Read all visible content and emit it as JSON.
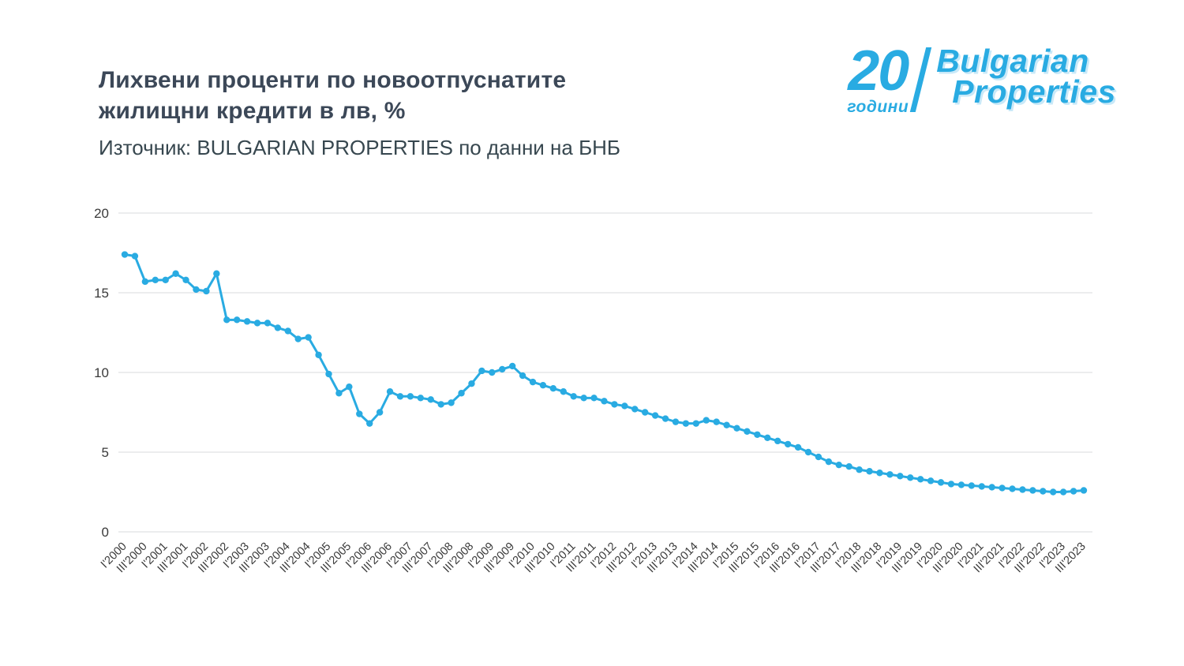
{
  "header": {
    "title_line1": "Лихвени проценти по новоотпуснатите",
    "title_line2": "жилищни кредити в лв, %",
    "subtitle": "Източник: BULGARIAN PROPERTIES по данни на БНБ"
  },
  "logo": {
    "number": "20",
    "years": "години",
    "brand_line1": "Bulgarian",
    "brand_line2": "Properties",
    "brand_color": "#29abe2"
  },
  "chart_data": {
    "type": "line",
    "title": "Лихвени проценти по новоотпуснатите жилищни кредити в лв, %",
    "xlabel": "",
    "ylabel": "",
    "ylim": [
      0,
      20
    ],
    "yticks": [
      0,
      5,
      10,
      15,
      20
    ],
    "grid": "horizontal",
    "legend": "none",
    "line_color": "#29abe2",
    "x_labels": [
      "I'2000",
      "II'2000",
      "III'2000",
      "IV'2000",
      "I'2001",
      "II'2001",
      "III'2001",
      "IV'2001",
      "I'2002",
      "II'2002",
      "III'2002",
      "IV'2002",
      "I'2003",
      "II'2003",
      "III'2003",
      "IV'2003",
      "I'2004",
      "II'2004",
      "III'2004",
      "IV'2004",
      "I'2005",
      "II'2005",
      "III'2005",
      "IV'2005",
      "I'2006",
      "II'2006",
      "III'2006",
      "IV'2006",
      "I'2007",
      "II'2007",
      "III'2007",
      "IV'2007",
      "I'2008",
      "II'2008",
      "III'2008",
      "IV'2008",
      "I'2009",
      "II'2009",
      "III'2009",
      "IV'2009",
      "I'2010",
      "II'2010",
      "III'2010",
      "IV'2010",
      "I'2011",
      "II'2011",
      "III'2011",
      "IV'2011",
      "I'2012",
      "II'2012",
      "III'2012",
      "IV'2012",
      "I'2013",
      "II'2013",
      "III'2013",
      "IV'2013",
      "I'2014",
      "II'2014",
      "III'2014",
      "IV'2014",
      "I'2015",
      "II'2015",
      "III'2015",
      "IV'2015",
      "I'2016",
      "II'2016",
      "III'2016",
      "IV'2016",
      "I'2017",
      "II'2017",
      "III'2017",
      "IV'2017",
      "I'2018",
      "II'2018",
      "III'2018",
      "IV'2018",
      "I'2019",
      "II'2019",
      "III'2019",
      "IV'2019",
      "I'2020",
      "II'2020",
      "III'2020",
      "IV'2020",
      "I'2021",
      "II'2021",
      "III'2021",
      "IV'2021",
      "I'2022",
      "II'2022",
      "III'2022",
      "IV'2022",
      "I'2023",
      "II'2023",
      "III'2023"
    ],
    "values": [
      17.4,
      17.3,
      15.7,
      15.8,
      15.8,
      16.2,
      15.8,
      15.2,
      15.1,
      16.2,
      13.3,
      13.3,
      13.2,
      13.1,
      13.1,
      12.8,
      12.6,
      12.1,
      12.2,
      11.1,
      9.9,
      8.7,
      9.1,
      7.4,
      6.8,
      7.5,
      8.8,
      8.5,
      8.5,
      8.4,
      8.3,
      8.0,
      8.1,
      8.7,
      9.3,
      10.1,
      10.0,
      10.2,
      10.4,
      9.8,
      9.4,
      9.2,
      9.0,
      8.8,
      8.5,
      8.4,
      8.4,
      8.2,
      8.0,
      7.9,
      7.7,
      7.5,
      7.3,
      7.1,
      6.9,
      6.8,
      6.8,
      7.0,
      6.9,
      6.7,
      6.5,
      6.3,
      6.1,
      5.9,
      5.7,
      5.5,
      5.3,
      5.0,
      4.7,
      4.4,
      4.2,
      4.1,
      3.9,
      3.8,
      3.7,
      3.6,
      3.5,
      3.4,
      3.3,
      3.2,
      3.1,
      3.0,
      2.95,
      2.9,
      2.85,
      2.8,
      2.75,
      2.7,
      2.65,
      2.6,
      2.55,
      2.5,
      2.5,
      2.55,
      2.6
    ]
  }
}
